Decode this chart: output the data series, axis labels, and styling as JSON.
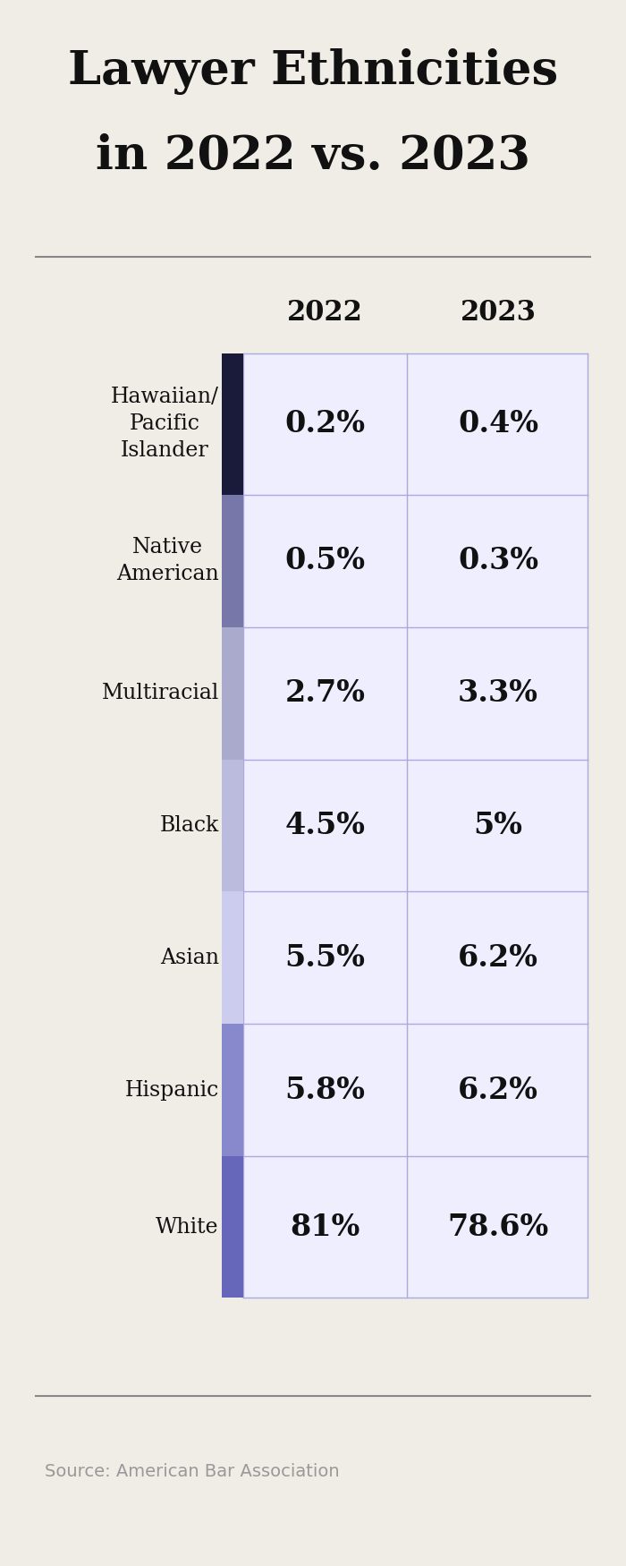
{
  "title_line1": "Lawyer Ethnicities",
  "title_line2": "in 2022 vs. 2023",
  "source": "Source: American Bar Association",
  "col_headers": [
    "2022",
    "2023"
  ],
  "categories": [
    "Hawaiian/\nPacific\nIslander",
    "Native\nAmerican",
    "Multiracial",
    "Black",
    "Asian",
    "Hispanic",
    "White"
  ],
  "values_2022": [
    "0.2%",
    "0.5%",
    "2.7%",
    "4.5%",
    "5.5%",
    "5.8%",
    "81%"
  ],
  "values_2023": [
    "0.4%",
    "0.3%",
    "3.3%",
    "5%",
    "6.2%",
    "6.2%",
    "78.6%"
  ],
  "bg_color": "#f0ede6",
  "cell_bg_color": "#eeeeff",
  "cell_border_color": "#aaaadd",
  "left_bar_colors": [
    "#1a1a3a",
    "#7777aa",
    "#aaaacc",
    "#bbbbdd",
    "#ccccee",
    "#8888cc",
    "#6666bb"
  ],
  "title_color": "#111111",
  "value_color": "#111111",
  "label_color": "#111111",
  "header_color": "#111111",
  "source_color": "#999999",
  "separator_color": "#888888"
}
